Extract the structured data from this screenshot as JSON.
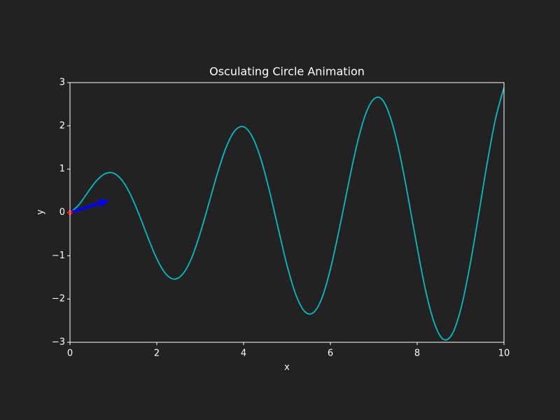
{
  "chart_data": {
    "type": "line",
    "title": "Osculating Circle Animation",
    "xlabel": "x",
    "ylabel": "y",
    "x": [
      0,
      0.2,
      0.4,
      0.6,
      0.8,
      1.0,
      1.2,
      1.4,
      1.6,
      1.8,
      2.0,
      2.2,
      2.4,
      2.6,
      2.8,
      3.0,
      3.2,
      3.4,
      3.6,
      3.8,
      4.0,
      4.2,
      4.4,
      4.6,
      4.8,
      5.0,
      5.2,
      5.4,
      5.6,
      5.8,
      6.0,
      6.2,
      6.4,
      6.6,
      6.8,
      7.0,
      7.2,
      7.4,
      7.6,
      7.8,
      8.0,
      8.2,
      8.4,
      8.6,
      8.8,
      9.0,
      9.2,
      9.4,
      9.6,
      9.8,
      10
    ],
    "series": [
      {
        "color": "#00bfbf",
        "values": [
          0,
          0.17,
          0.45,
          0.72,
          0.89,
          0.91,
          0.74,
          0.4,
          -0.07,
          -0.59,
          -1.07,
          -1.41,
          -1.54,
          -1.42,
          -1.06,
          -0.48,
          0.21,
          0.91,
          1.51,
          1.89,
          1.98,
          1.75,
          1.23,
          0.48,
          -0.38,
          -1.22,
          -1.89,
          -2.28,
          -2.32,
          -1.99,
          -1.31,
          -0.41,
          0.58,
          1.52,
          2.24,
          2.62,
          2.6,
          2.14,
          1.34,
          0.3,
          -0.81,
          -1.83,
          -2.57,
          -2.93,
          -2.82,
          -2.25,
          -1.31,
          -0.15,
          1.07,
          2.14,
          2.89
        ]
      }
    ],
    "marker": {
      "x": 0,
      "y": 0,
      "color": "red"
    },
    "arrow": {
      "x": 0,
      "y": 0,
      "dx": 0.9,
      "dy": 0.28,
      "color": "blue"
    },
    "xlim": [
      0,
      10
    ],
    "ylim": [
      -3,
      3
    ],
    "xticks": [
      0,
      2,
      4,
      6,
      8,
      10
    ],
    "yticks": [
      {
        "value": -3,
        "label": "−3"
      },
      {
        "value": -2,
        "label": "−2"
      },
      {
        "value": -1,
        "label": "−1"
      },
      0,
      1,
      2,
      3
    ]
  }
}
